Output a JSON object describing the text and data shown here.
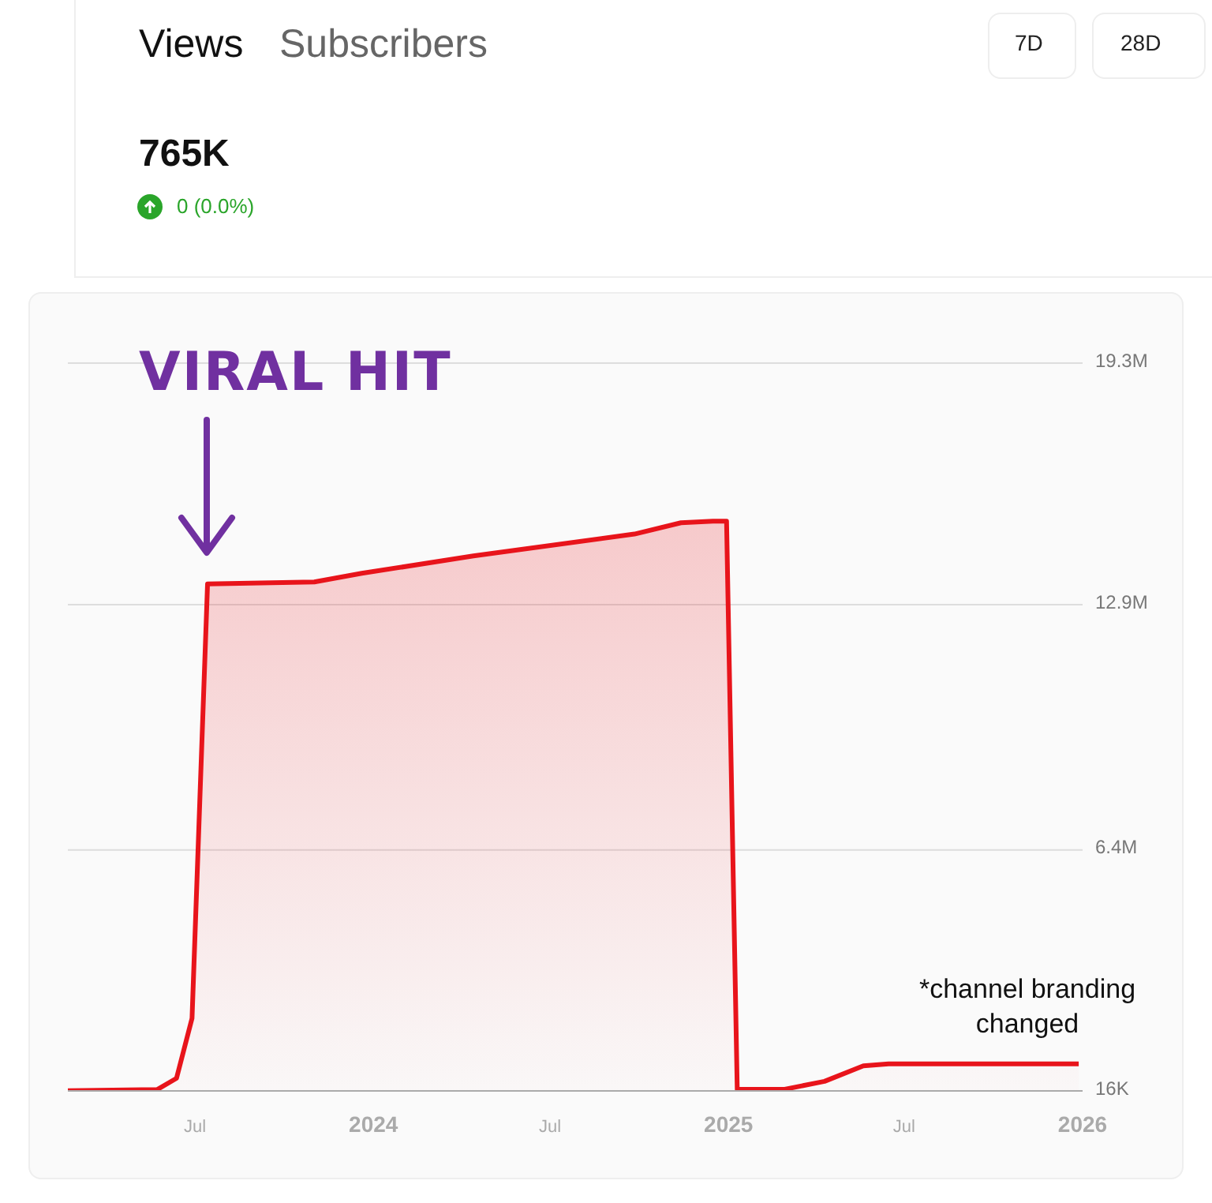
{
  "chart_data": {
    "type": "area",
    "color": "#e8141b",
    "x": [
      "2023-02-20",
      "2023-05-23",
      "2023-06-12",
      "2023-06-28",
      "2023-07-14",
      "2023-11-01",
      "2023-12-20",
      "2024-04-13",
      "2024-09-26",
      "2024-11-13",
      "2024-12-16",
      "2024-12-30",
      "2025-01-10",
      "2025-02-28",
      "2025-04-10",
      "2025-05-20",
      "2025-06-15",
      "2025-12-28"
    ],
    "values": [
      20000,
      50000,
      350000,
      1940000,
      13450000,
      13500000,
      13730000,
      14190000,
      14770000,
      15070000,
      15110000,
      15110000,
      60000,
      60000,
      270000,
      680000,
      730000,
      730000
    ],
    "xlim": [
      "2023-02-20",
      "2026-01-01"
    ],
    "xticks": [
      {
        "value": "2023-07-01",
        "label": "Jul"
      },
      {
        "value": "2024-01-01",
        "label": "2024"
      },
      {
        "value": "2024-07-01",
        "label": "Jul"
      },
      {
        "value": "2025-01-01",
        "label": "2025"
      },
      {
        "value": "2025-07-01",
        "label": "Jul"
      },
      {
        "value": "2026-01-01",
        "label": "2026"
      }
    ],
    "ylim": [
      16000,
      19300000
    ],
    "yticks": [
      {
        "value": 16000,
        "label": "16K"
      },
      {
        "value": 6400000,
        "label": "6.4M"
      },
      {
        "value": 12900000,
        "label": "12.9M"
      },
      {
        "value": 19300000,
        "label": "19.3M"
      }
    ],
    "grid": "y",
    "annotations": [
      "Views",
      "Subscribers",
      "7D",
      "28D",
      "765K",
      "0 (0.0%)",
      "VIRAL HIT",
      "*channel branding changed"
    ]
  }
}
